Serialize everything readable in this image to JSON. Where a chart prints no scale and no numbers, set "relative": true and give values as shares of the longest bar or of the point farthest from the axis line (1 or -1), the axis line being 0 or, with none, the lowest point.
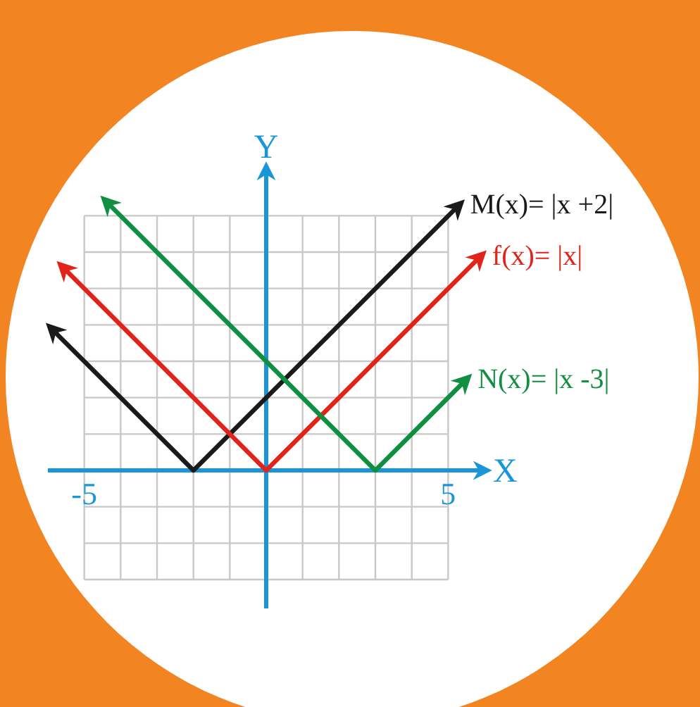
{
  "chart_data": {
    "type": "line",
    "xlabel": "X",
    "ylabel": "Y",
    "xlim": [
      -6,
      6
    ],
    "relative": true,
    "xticks": [
      -5,
      {
        "value": -4,
        "label": null
      },
      {
        "value": -3,
        "label": null
      },
      {
        "value": -2,
        "label": null
      },
      {
        "value": -1,
        "label": null
      },
      {
        "value": 0,
        "label": null
      },
      {
        "value": 1,
        "label": null
      },
      {
        "value": 2,
        "label": null
      },
      {
        "value": 3,
        "label": null
      },
      {
        "value": 4,
        "label": null
      },
      5
    ],
    "grid": true,
    "line_style": "solid",
    "ref_lines": [
      {
        "axis": "x",
        "value": 0,
        "color": "#1a96d8"
      }
    ],
    "series": [
      {
        "name": "M(x)= |x +2|",
        "color": "#1a1a1a",
        "x": [
          -5.9,
          -2,
          5.3
        ],
        "values": [
          0.527,
          0,
          0.986
        ]
      },
      {
        "name": "f(x)= |x|",
        "color": "#e2231a",
        "x": [
          -5.6,
          0,
          5.9
        ],
        "values": [
          0.757,
          0,
          0.797
        ]
      },
      {
        "name": "N(x)= |x -3|",
        "color": "#0f8f3f",
        "x": [
          -4.4,
          3,
          5.5
        ],
        "values": [
          1,
          0,
          0.338
        ]
      }
    ]
  }
}
